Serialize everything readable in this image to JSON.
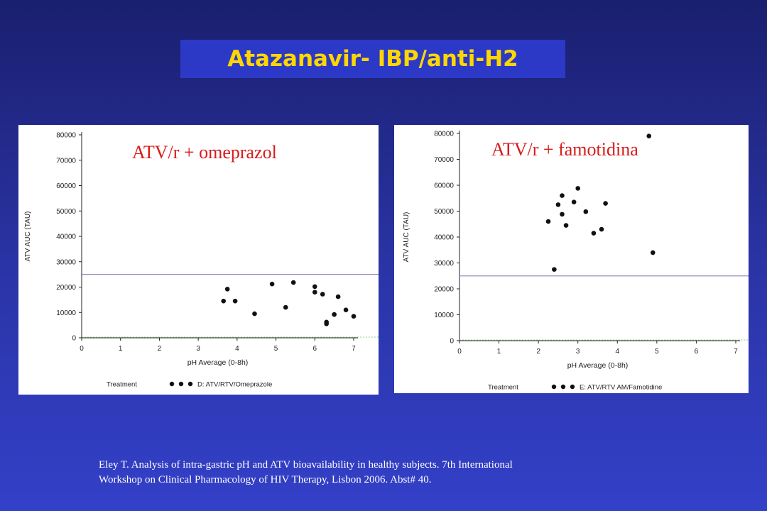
{
  "slide": {
    "title": "Atazanavir- IBP/anti-H2",
    "reference_line1": "Eley T. Analysis of intra-gastric pH and ATV bioavailability in healthy subjects. 7th International",
    "reference_line2": "Workshop on Clinical Pharmacology of HIV Therapy, Lisbon 2006. Abst# 40.",
    "colors": {
      "title_text": "#ffd700",
      "title_box": "#2c39c6",
      "overlay_label": "#d81b1b",
      "threshold_line": "#9a8fc4",
      "baseline_line": "#8fd18f"
    }
  },
  "chart_data": [
    {
      "type": "scatter",
      "overlay_label": "ATV/r + omeprazol",
      "xlabel": "pH Average (0-8h)",
      "ylabel": "ATV AUC (TAU)",
      "xlim": [
        0,
        7
      ],
      "ylim": [
        0,
        80000
      ],
      "x_ticks": [
        0,
        1,
        2,
        3,
        4,
        5,
        6,
        7
      ],
      "y_ticks": [
        0,
        10000,
        20000,
        30000,
        40000,
        50000,
        60000,
        70000,
        80000
      ],
      "threshold": 25000,
      "legend_label": "Treatment",
      "legend_text": "D: ATV/RTV/Omeprazole",
      "grid": false,
      "points": [
        [
          3.65,
          14500
        ],
        [
          3.75,
          19200
        ],
        [
          3.95,
          14500
        ],
        [
          4.45,
          9500
        ],
        [
          4.9,
          21200
        ],
        [
          5.25,
          12000
        ],
        [
          5.45,
          21800
        ],
        [
          6.0,
          20200
        ],
        [
          6.0,
          18000
        ],
        [
          6.2,
          17200
        ],
        [
          6.3,
          6200
        ],
        [
          6.3,
          5500
        ],
        [
          6.5,
          9200
        ],
        [
          6.6,
          16200
        ],
        [
          6.8,
          11000
        ],
        [
          7.0,
          8500
        ]
      ]
    },
    {
      "type": "scatter",
      "overlay_label": "ATV/r + famotidina",
      "xlabel": "pH Average (0-8h)",
      "ylabel": "ATV AUC (TAU)",
      "xlim": [
        0,
        7
      ],
      "ylim": [
        0,
        80000
      ],
      "x_ticks": [
        0,
        1,
        2,
        3,
        4,
        5,
        6,
        7
      ],
      "y_ticks": [
        0,
        10000,
        20000,
        30000,
        40000,
        50000,
        60000,
        70000,
        80000
      ],
      "threshold": 25000,
      "legend_label": "Treatment",
      "legend_text": "E: ATV/RTV AM/Famotidine",
      "grid": false,
      "points": [
        [
          2.25,
          46000
        ],
        [
          2.4,
          27500
        ],
        [
          2.5,
          52500
        ],
        [
          2.6,
          56000
        ],
        [
          2.6,
          48800
        ],
        [
          2.7,
          44500
        ],
        [
          2.9,
          53500
        ],
        [
          3.0,
          58800
        ],
        [
          3.2,
          49800
        ],
        [
          3.4,
          41500
        ],
        [
          3.6,
          43000
        ],
        [
          3.7,
          53000
        ],
        [
          4.8,
          79000
        ],
        [
          4.9,
          34000
        ]
      ]
    }
  ]
}
